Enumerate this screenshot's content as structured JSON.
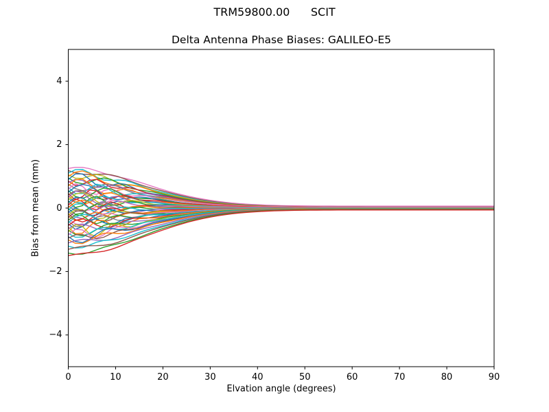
{
  "figure": {
    "suptitle": "TRM59800.00      SCIT",
    "axes_title": "Delta Antenna Phase Biases: GALILEO-E5",
    "xlabel": "Elvation angle (degrees)",
    "ylabel": "Bias from mean (mm)"
  },
  "chart_data": {
    "type": "line",
    "title": "TRM59800.00      SCIT",
    "subtitle": "Delta Antenna Phase Biases: GALILEO-E5",
    "xlabel": "Elvation angle (degrees)",
    "ylabel": "Bias from mean (mm)",
    "xlim": [
      0,
      90
    ],
    "ylim": [
      -5,
      5
    ],
    "xticks": [
      0,
      10,
      20,
      30,
      40,
      50,
      60,
      70,
      80,
      90
    ],
    "xtick_labels": [
      "0",
      "10",
      "20",
      "30",
      "40",
      "50",
      "60",
      "70",
      "80",
      "90"
    ],
    "yticks": [
      -4,
      -2,
      0,
      2,
      4
    ],
    "ytick_labels": [
      "−4",
      "−2",
      "0",
      "2",
      "4"
    ],
    "grid": false,
    "legend": "none",
    "axis_color": "#000000",
    "n_series": 55,
    "model": {
      "description": "Each antenna-phase-bias curve starts at bias_0deg_mm at 0 deg elevation, wiggles slightly below ~15 deg, and converges to bias_90deg_mm by ~30-90 deg",
      "formula": "y(x) = end + (start-end)*exp(-(x/22)^2) + amp*sin(freq*x)*exp(-(x/12)^2)",
      "x_step_deg": 1.5
    },
    "color_cycle": [
      "#1f77b4",
      "#ff7f0e",
      "#2ca02c",
      "#d62728",
      "#9467bd",
      "#8c564b",
      "#e377c2",
      "#7f7f7f",
      "#bcbd22",
      "#17becf"
    ],
    "series": [
      {
        "color": "#e377c2",
        "start": 1.25,
        "end": 0.06,
        "amp": 0.06,
        "freq": 0.5
      },
      {
        "color": "#8c564b",
        "start": 1.18,
        "end": 0.04,
        "amp": -0.1,
        "freq": 0.45
      },
      {
        "color": "#17becf",
        "start": 1.1,
        "end": 0.03,
        "amp": 0.15,
        "freq": 0.6
      },
      {
        "color": "#bcbd22",
        "start": 1.05,
        "end": 0.02,
        "amp": -0.12,
        "freq": 0.7
      },
      {
        "color": "#ff7f0e",
        "start": 1.0,
        "end": 0.03,
        "amp": 0.2,
        "freq": 0.5
      },
      {
        "color": "#2ca02c",
        "start": 0.95,
        "end": 0.02,
        "amp": -0.18,
        "freq": 0.55
      },
      {
        "color": "#1f77b4",
        "start": 0.9,
        "end": 0.01,
        "amp": 0.22,
        "freq": 0.65
      },
      {
        "color": "#d62728",
        "start": 0.85,
        "end": 0.02,
        "amp": -0.15,
        "freq": 0.8
      },
      {
        "color": "#9467bd",
        "start": 0.8,
        "end": 0.01,
        "amp": 0.12,
        "freq": 0.75
      },
      {
        "color": "#7f7f7f",
        "start": 0.75,
        "end": 0.0,
        "amp": -0.2,
        "freq": 0.5
      },
      {
        "color": "#ff7f0e",
        "start": 0.7,
        "end": 0.02,
        "amp": 0.25,
        "freq": 0.6
      },
      {
        "color": "#17becf",
        "start": 0.65,
        "end": 0.01,
        "amp": -0.22,
        "freq": 0.7
      },
      {
        "color": "#e377c2",
        "start": 0.6,
        "end": 0.03,
        "amp": 0.18,
        "freq": 0.85
      },
      {
        "color": "#2ca02c",
        "start": 0.55,
        "end": 0.0,
        "amp": -0.25,
        "freq": 0.55
      },
      {
        "color": "#1f77b4",
        "start": 0.5,
        "end": 0.01,
        "amp": 0.28,
        "freq": 0.45
      },
      {
        "color": "#d62728",
        "start": 0.45,
        "end": 0.02,
        "amp": -0.2,
        "freq": 0.9
      },
      {
        "color": "#8c564b",
        "start": 0.42,
        "end": 0.0,
        "amp": 0.15,
        "freq": 0.65
      },
      {
        "color": "#ff7f0e",
        "start": 0.38,
        "end": 0.01,
        "amp": -0.28,
        "freq": 0.5
      },
      {
        "color": "#9467bd",
        "start": 0.34,
        "end": 0.0,
        "amp": 0.22,
        "freq": 0.75
      },
      {
        "color": "#17becf",
        "start": 0.3,
        "end": 0.01,
        "amp": -0.15,
        "freq": 0.6
      },
      {
        "color": "#bcbd22",
        "start": 0.26,
        "end": 0.0,
        "amp": 0.25,
        "freq": 0.55
      },
      {
        "color": "#2ca02c",
        "start": 0.22,
        "end": 0.01,
        "amp": -0.22,
        "freq": 0.8
      },
      {
        "color": "#1f77b4",
        "start": 0.18,
        "end": 0.0,
        "amp": 0.18,
        "freq": 0.7
      },
      {
        "color": "#e377c2",
        "start": 0.14,
        "end": 0.02,
        "amp": -0.25,
        "freq": 0.45
      },
      {
        "color": "#d62728",
        "start": 0.1,
        "end": 0.0,
        "amp": 0.2,
        "freq": 0.85
      },
      {
        "color": "#7f7f7f",
        "start": 0.06,
        "end": 0.01,
        "amp": -0.18,
        "freq": 0.6
      },
      {
        "color": "#ff7f0e",
        "start": 0.02,
        "end": 0.0,
        "amp": 0.25,
        "freq": 0.5
      },
      {
        "color": "#2ca02c",
        "start": -0.02,
        "end": -0.01,
        "amp": -0.2,
        "freq": 0.75
      },
      {
        "color": "#17becf",
        "start": -0.06,
        "end": 0.0,
        "amp": 0.22,
        "freq": 0.65
      },
      {
        "color": "#9467bd",
        "start": -0.1,
        "end": -0.01,
        "amp": -0.25,
        "freq": 0.55
      },
      {
        "color": "#1f77b4",
        "start": -0.14,
        "end": -0.02,
        "amp": 0.15,
        "freq": 0.9
      },
      {
        "color": "#d62728",
        "start": -0.18,
        "end": -0.01,
        "amp": -0.28,
        "freq": 0.5
      },
      {
        "color": "#bcbd22",
        "start": -0.22,
        "end": -0.02,
        "amp": 0.2,
        "freq": 0.7
      },
      {
        "color": "#ff7f0e",
        "start": -0.26,
        "end": -0.01,
        "amp": -0.15,
        "freq": 0.8
      },
      {
        "color": "#8c564b",
        "start": -0.3,
        "end": -0.02,
        "amp": 0.25,
        "freq": 0.6
      },
      {
        "color": "#e377c2",
        "start": -0.34,
        "end": -0.01,
        "amp": -0.22,
        "freq": 0.55
      },
      {
        "color": "#2ca02c",
        "start": -0.38,
        "end": -0.03,
        "amp": 0.18,
        "freq": 0.75
      },
      {
        "color": "#7f7f7f",
        "start": -0.42,
        "end": -0.02,
        "amp": -0.2,
        "freq": 0.65
      },
      {
        "color": "#17becf",
        "start": -0.46,
        "end": -0.01,
        "amp": 0.28,
        "freq": 0.45
      },
      {
        "color": "#1f77b4",
        "start": -0.5,
        "end": -0.03,
        "amp": -0.18,
        "freq": 0.85
      },
      {
        "color": "#d62728",
        "start": -0.55,
        "end": -0.02,
        "amp": 0.22,
        "freq": 0.55
      },
      {
        "color": "#ff7f0e",
        "start": -0.6,
        "end": -0.01,
        "amp": -0.25,
        "freq": 0.7
      },
      {
        "color": "#9467bd",
        "start": -0.65,
        "end": -0.03,
        "amp": 0.15,
        "freq": 0.6
      },
      {
        "color": "#2ca02c",
        "start": -0.7,
        "end": -0.02,
        "amp": -0.2,
        "freq": 0.5
      },
      {
        "color": "#bcbd22",
        "start": -0.75,
        "end": -0.03,
        "amp": 0.25,
        "freq": 0.8
      },
      {
        "color": "#17becf",
        "start": -0.8,
        "end": -0.02,
        "amp": -0.15,
        "freq": 0.65
      },
      {
        "color": "#e377c2",
        "start": -0.85,
        "end": -0.04,
        "amp": 0.2,
        "freq": 0.75
      },
      {
        "color": "#1f77b4",
        "start": -0.9,
        "end": -0.03,
        "amp": -0.22,
        "freq": 0.55
      },
      {
        "color": "#8c564b",
        "start": -0.95,
        "end": -0.04,
        "amp": 0.12,
        "freq": 0.7
      },
      {
        "color": "#ff7f0e",
        "start": -1.0,
        "end": -0.03,
        "amp": -0.15,
        "freq": 0.6
      },
      {
        "color": "#9467bd",
        "start": -1.1,
        "end": -0.04,
        "amp": 0.1,
        "freq": 0.5
      },
      {
        "color": "#17becf",
        "start": -1.2,
        "end": -0.05,
        "amp": -0.08,
        "freq": 0.65
      },
      {
        "color": "#8c564b",
        "start": -1.3,
        "end": -0.04,
        "amp": 0.08,
        "freq": 0.45
      },
      {
        "color": "#2ca02c",
        "start": -1.42,
        "end": -0.05,
        "amp": -0.06,
        "freq": 0.55
      },
      {
        "color": "#d62728",
        "start": -1.5,
        "end": -0.06,
        "amp": 0.05,
        "freq": 0.5
      }
    ]
  }
}
